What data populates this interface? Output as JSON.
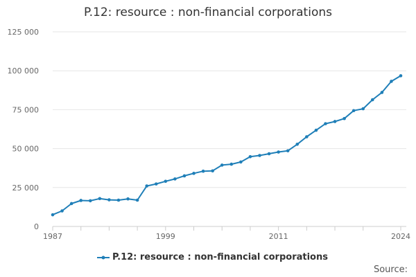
{
  "source_label": "Source:",
  "colors": {
    "series": "#1f7fb8",
    "grid": "#e6e6e6",
    "axis": "#cccccc",
    "tick_label": "#666666"
  },
  "chart_data": {
    "type": "line",
    "title": "P.12: resource : non-financial corporations",
    "xlabel": "",
    "ylabel": "",
    "xlim": [
      1987,
      2024
    ],
    "ylim": [
      0,
      125000
    ],
    "yticks": [
      0,
      25000,
      50000,
      75000,
      100000,
      125000
    ],
    "ytick_labels": [
      "0",
      "25 000",
      "50 000",
      "75 000",
      "100 000",
      "125 000"
    ],
    "xticks_labeled": [
      1987,
      1999,
      2011,
      2024
    ],
    "xticks_minor": [
      1987,
      1990,
      1993,
      1996,
      1999,
      2002,
      2005,
      2008,
      2011,
      2014,
      2017,
      2020,
      2024
    ],
    "grid": true,
    "legend_position": "bottom",
    "series": [
      {
        "name": "P.12: resource : non-financial corporations",
        "x": [
          1987,
          1988,
          1989,
          1990,
          1991,
          1992,
          1993,
          1994,
          1995,
          1996,
          1997,
          1998,
          1999,
          2000,
          2001,
          2002,
          2003,
          2004,
          2005,
          2006,
          2007,
          2008,
          2009,
          2010,
          2011,
          2012,
          2013,
          2014,
          2015,
          2016,
          2017,
          2018,
          2019,
          2020,
          2021,
          2022,
          2023,
          2024
        ],
        "values": [
          7500,
          10000,
          14700,
          16700,
          16500,
          17900,
          17100,
          16900,
          17700,
          16900,
          26000,
          27300,
          29000,
          30500,
          32500,
          34100,
          35500,
          35700,
          39400,
          40000,
          41400,
          44800,
          45600,
          46700,
          47800,
          48600,
          52800,
          57600,
          61800,
          66000,
          67400,
          69300,
          74400,
          75600,
          81400,
          86100,
          93200,
          96800
        ]
      }
    ]
  }
}
